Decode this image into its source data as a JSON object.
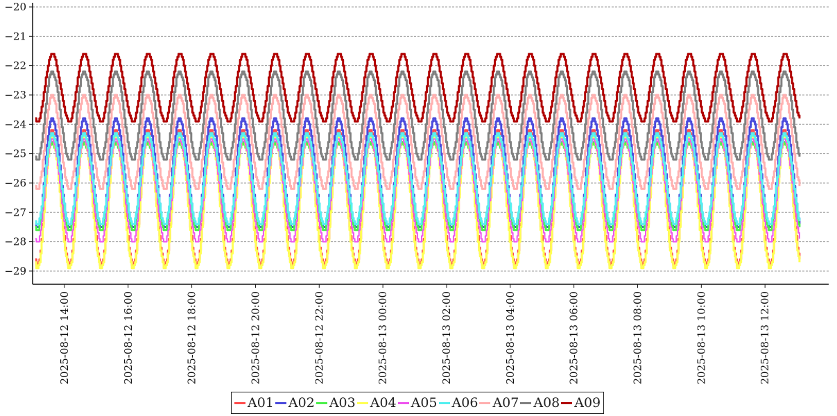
{
  "chart_data": {
    "type": "line",
    "title": "",
    "xlabel": "",
    "ylabel": "",
    "ylim": [
      -29.45,
      -20
    ],
    "yticks": [
      -20,
      -21,
      -22,
      -23,
      -24,
      -25,
      -26,
      -27,
      -28,
      -29
    ],
    "x_tick_labels": [
      "2025-08-12 14:00",
      "2025-08-12 16:00",
      "2025-08-12 18:00",
      "2025-08-12 20:00",
      "2025-08-12 22:00",
      "2025-08-13 00:00",
      "2025-08-13 02:00",
      "2025-08-13 04:00",
      "2025-08-13 06:00",
      "2025-08-13 08:00",
      "2025-08-13 10:00",
      "2025-08-13 12:00"
    ],
    "x_start": "2025-08-12 13:05",
    "x_end": "2025-08-13 13:05",
    "x_axis_start": "2025-08-12 13:00",
    "x_axis_end": "2025-08-13 14:00",
    "x_unit": "minutes",
    "period_min": 60,
    "first_peak_min": 31,
    "grid": "horizontal dashed",
    "legend_position": "bottom-center",
    "series": [
      {
        "name": "A01",
        "color": "#ff4d4d",
        "min": -28.8,
        "max": -24.2,
        "width": 3
      },
      {
        "name": "A02",
        "color": "#4b4bdc",
        "min": -27.5,
        "max": -23.8,
        "width": 3
      },
      {
        "name": "A03",
        "color": "#4cf04c",
        "min": -27.6,
        "max": -24.6,
        "width": 3
      },
      {
        "name": "A04",
        "color": "#ffff55",
        "min": -28.9,
        "max": -24.4,
        "width": 3
      },
      {
        "name": "A05",
        "color": "#ee55ee",
        "min": -28.0,
        "max": -24.5,
        "width": 2
      },
      {
        "name": "A06",
        "color": "#55f0f0",
        "min": -27.4,
        "max": -24.3,
        "width": 3
      },
      {
        "name": "A07",
        "color": "#ffb0b0",
        "min": -26.2,
        "max": -23.0,
        "width": 3
      },
      {
        "name": "A08",
        "color": "#808080",
        "min": -25.2,
        "max": -22.2,
        "width": 3
      },
      {
        "name": "A09",
        "color": "#b00000",
        "min": -23.9,
        "max": -21.6,
        "width": 3
      }
    ]
  }
}
